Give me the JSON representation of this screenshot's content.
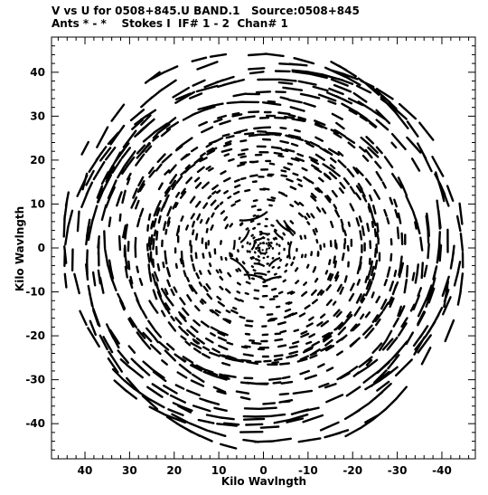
{
  "header": {
    "line1": "V vs U for 0508+845.U BAND.1   Source:0508+845",
    "line2": "Ants * - *    Stokes I  IF# 1 - 2  Chan# 1"
  },
  "chart_data": {
    "type": "scatter",
    "title": "V vs U for 0508+845.U BAND.1   Source:0508+845",
    "subtitle": "Ants * - *    Stokes I  IF# 1 - 2  Chan# 1",
    "xlabel": "Kilo Wavlngth",
    "ylabel": "Kilo Wavlngth",
    "xlim": [
      47.5,
      -47.5
    ],
    "ylim": [
      -48,
      48
    ],
    "x_reversed": true,
    "x_ticks": [
      40,
      30,
      20,
      10,
      0,
      -10,
      -20,
      -30,
      -40
    ],
    "x_tick_labels": [
      "40",
      "30",
      "20",
      "10",
      "0",
      "-10",
      "-20",
      "-30",
      "-40"
    ],
    "y_ticks": [
      40,
      30,
      20,
      10,
      0,
      -10,
      -20,
      -30,
      -40
    ],
    "y_tick_labels": [
      "40",
      "30",
      "20",
      "10",
      "0",
      "-10",
      "-20",
      "-30",
      "-40"
    ],
    "grid": false,
    "marker_color": "#000000",
    "uv_coverage": {
      "description_of_pattern": "radially symmetric elliptical u-v tracks",
      "max_radius_klambda": 47,
      "dense_core_radius_klambda": 8,
      "tracks": 54,
      "gaps_at_position_angles_deg": [
        0,
        90,
        180,
        270
      ]
    }
  }
}
